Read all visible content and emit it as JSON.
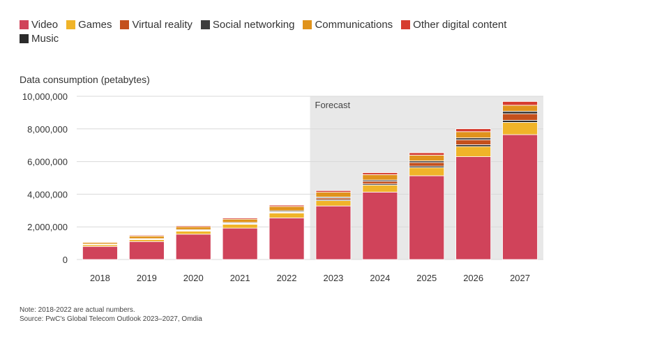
{
  "legend": {
    "items": [
      {
        "label": "Video",
        "color": "#d0435a"
      },
      {
        "label": "Games",
        "color": "#f0b429"
      },
      {
        "label": "Virtual reality",
        "color": "#c4501c"
      },
      {
        "label": "Social networking",
        "color": "#3d3d3d"
      },
      {
        "label": "Communications",
        "color": "#e0931c"
      },
      {
        "label": "Other digital content",
        "color": "#d63c2f"
      },
      {
        "label": "Music",
        "color": "#2b2b2b"
      }
    ]
  },
  "notes": {
    "line1": "Note: 2018-2022 are actual numbers.",
    "line2": "Source: PwC's Global Telecom Outlook 2023–2027, Omdia"
  },
  "chart_data": {
    "type": "bar",
    "stacked": true,
    "title": "",
    "xlabel": "",
    "ylabel": "Data consumption (petabytes)",
    "ylim": [
      0,
      10000000
    ],
    "yticks": [
      0,
      2000000,
      4000000,
      6000000,
      8000000,
      10000000
    ],
    "ytick_labels": [
      "0",
      "2,000,000",
      "4,000,000",
      "6,000,000",
      "8,000,000",
      "10,000,000"
    ],
    "grid": true,
    "legend_position": "top-left",
    "categories": [
      "2018",
      "2019",
      "2020",
      "2021",
      "2022",
      "2023",
      "2024",
      "2025",
      "2026",
      "2027"
    ],
    "forecast": {
      "label": "Forecast",
      "from": "2023",
      "to": "2027"
    },
    "series": [
      {
        "name": "Video",
        "color": "#d0435a",
        "values": [
          800000,
          1100000,
          1550000,
          1920000,
          2550000,
          3280000,
          4130000,
          5130000,
          6300000,
          7650000
        ]
      },
      {
        "name": "Games",
        "color": "#f0b429",
        "values": [
          100000,
          120000,
          190000,
          240000,
          300000,
          330000,
          430000,
          500000,
          620000,
          750000
        ]
      },
      {
        "name": "Music",
        "color": "#2b2b2b",
        "values": [
          20000,
          20000,
          30000,
          30000,
          40000,
          60000,
          70000,
          90000,
          110000,
          130000
        ]
      },
      {
        "name": "Virtual reality",
        "color": "#c4501c",
        "values": [
          10000,
          10000,
          20000,
          30000,
          40000,
          100000,
          160000,
          220000,
          300000,
          400000
        ]
      },
      {
        "name": "Social networking",
        "color": "#3d3d3d",
        "values": [
          20000,
          30000,
          40000,
          50000,
          60000,
          60000,
          80000,
          100000,
          120000,
          150000
        ]
      },
      {
        "name": "Communications",
        "color": "#e0931c",
        "values": [
          100000,
          160000,
          180000,
          200000,
          260000,
          290000,
          330000,
          350000,
          380000,
          370000
        ]
      },
      {
        "name": "Other digital content",
        "color": "#d63c2f",
        "values": [
          30000,
          50000,
          60000,
          70000,
          80000,
          100000,
          120000,
          150000,
          180000,
          230000
        ]
      }
    ]
  }
}
